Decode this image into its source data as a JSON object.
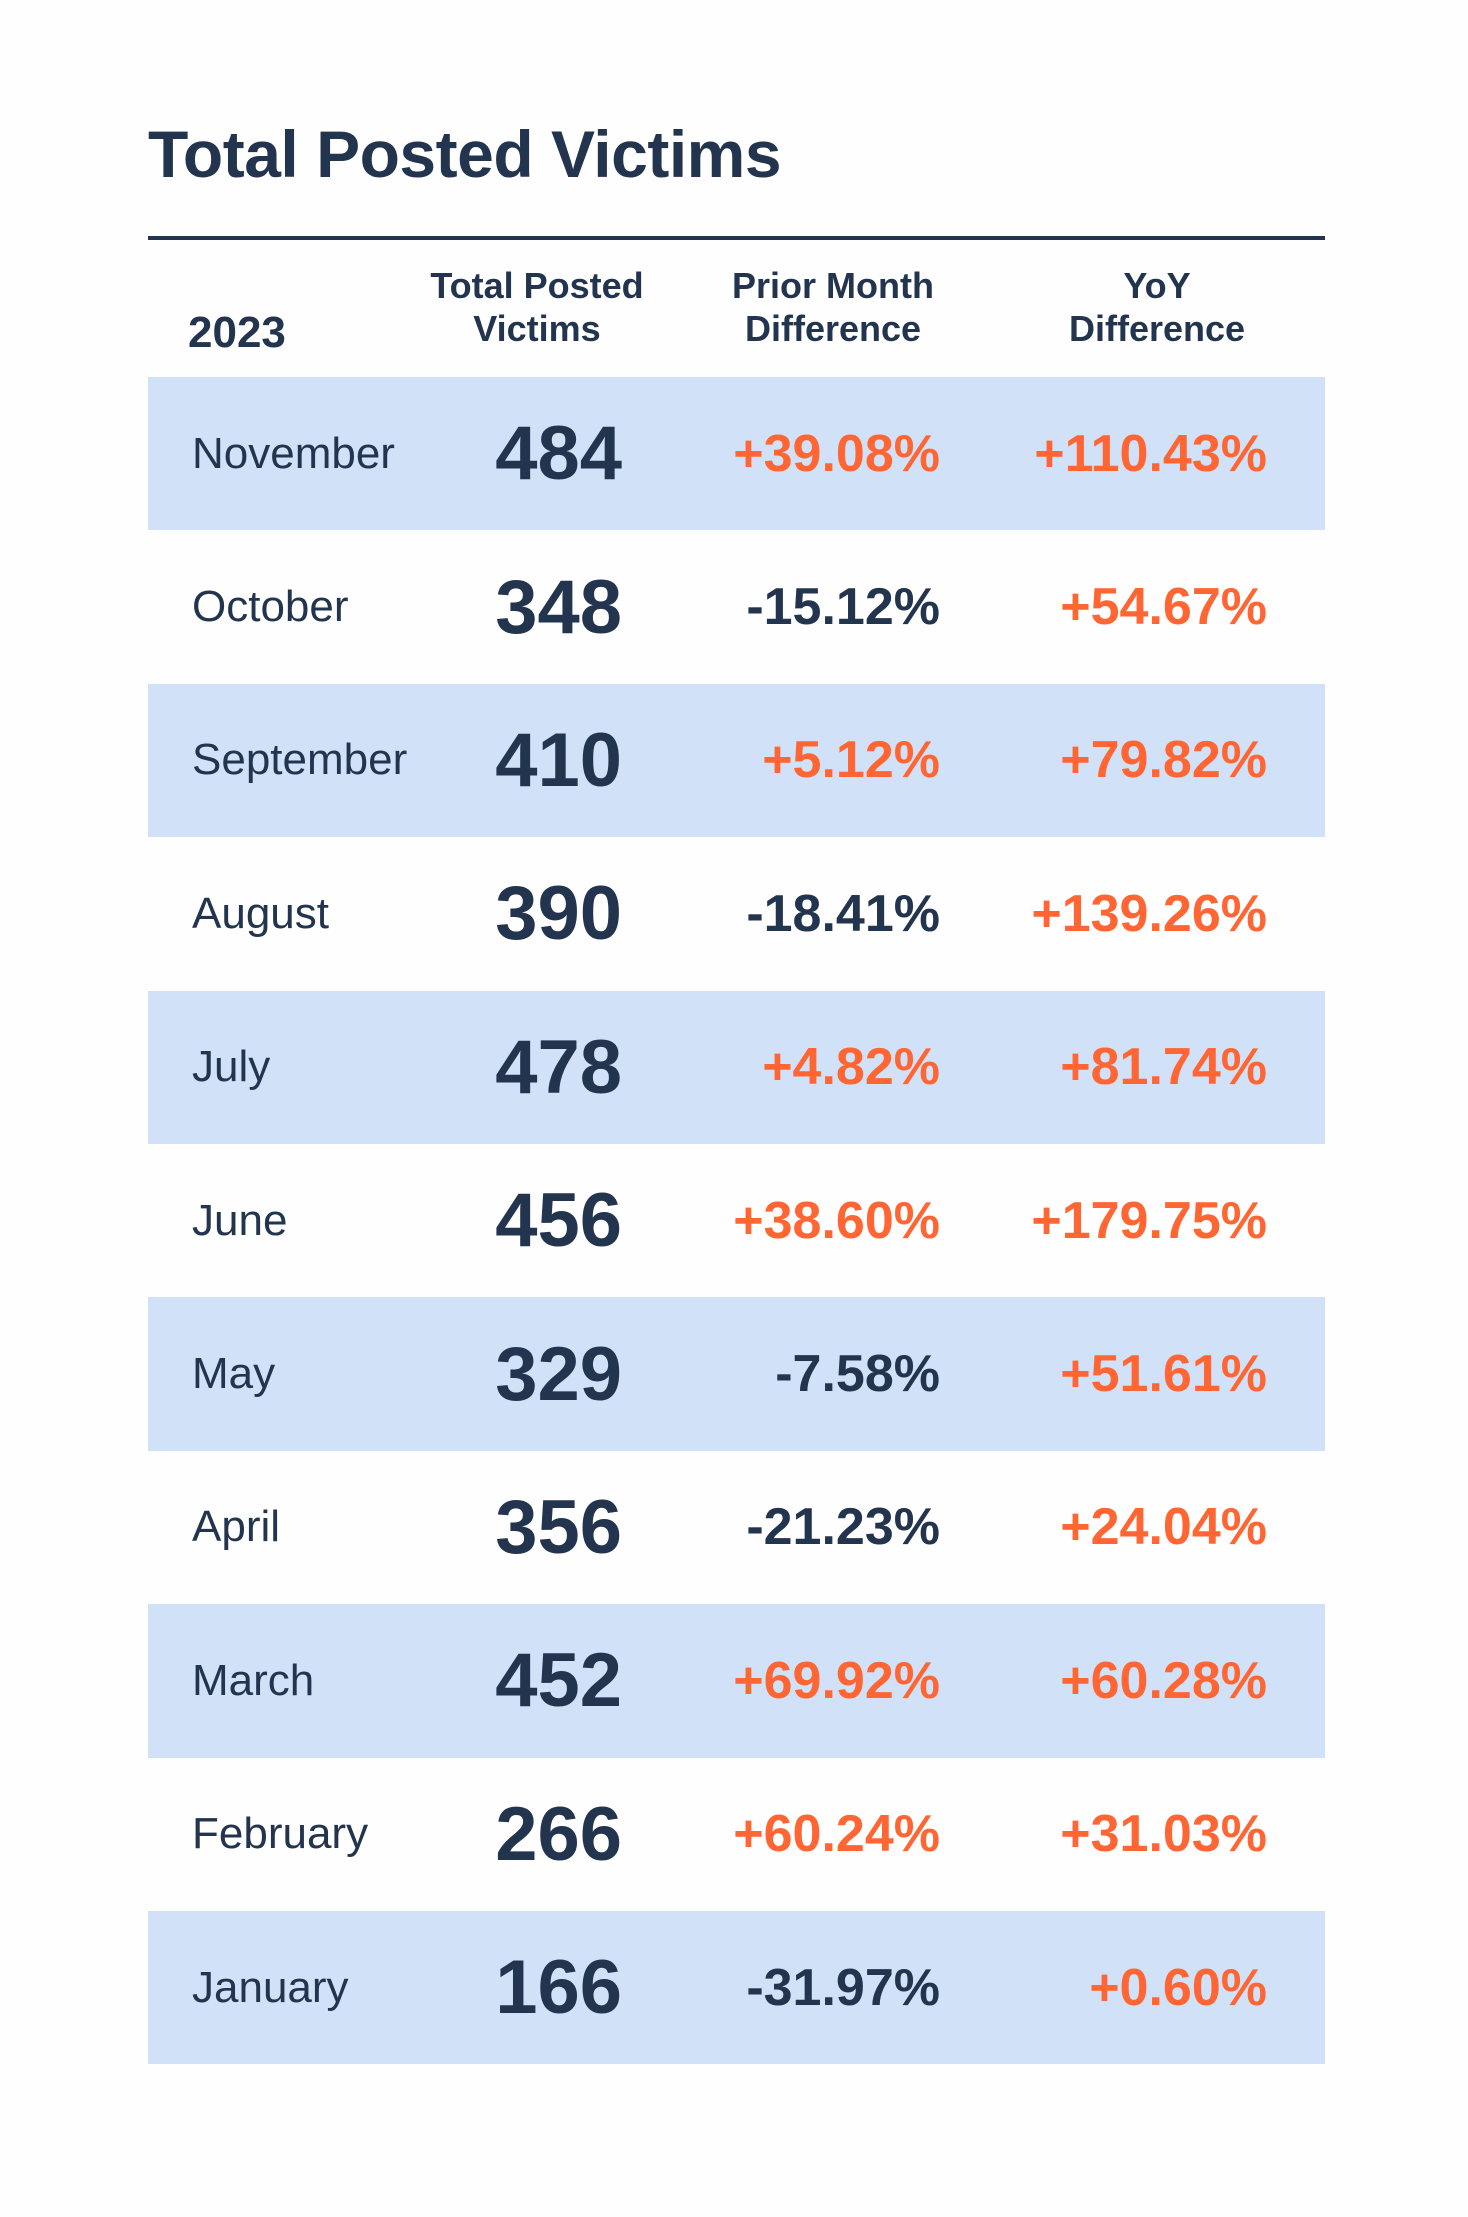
{
  "title": "Total Posted Victims",
  "header": {
    "year": "2023",
    "columns": [
      {
        "line1": "Total Posted",
        "line2": "Victims"
      },
      {
        "line1": "Prior Month",
        "line2": "Difference"
      },
      {
        "line1": "YoY",
        "line2": "Difference"
      }
    ]
  },
  "colors": {
    "text": "#23344E",
    "positive": "#FF6633",
    "negative": "#23344E",
    "band": "#D1E1F8",
    "background": "#FEFEFE"
  },
  "rows": [
    {
      "month": "November",
      "total": "484",
      "prior": "+39.08%",
      "prior_sign": "pos",
      "yoy": "+110.43%",
      "yoy_sign": "pos"
    },
    {
      "month": "October",
      "total": "348",
      "prior": "-15.12%",
      "prior_sign": "neg",
      "yoy": "+54.67%",
      "yoy_sign": "pos"
    },
    {
      "month": "September",
      "total": "410",
      "prior": "+5.12%",
      "prior_sign": "pos",
      "yoy": "+79.82%",
      "yoy_sign": "pos"
    },
    {
      "month": "August",
      "total": "390",
      "prior": "-18.41%",
      "prior_sign": "neg",
      "yoy": "+139.26%",
      "yoy_sign": "pos"
    },
    {
      "month": "July",
      "total": "478",
      "prior": "+4.82%",
      "prior_sign": "pos",
      "yoy": "+81.74%",
      "yoy_sign": "pos"
    },
    {
      "month": "June",
      "total": "456",
      "prior": "+38.60%",
      "prior_sign": "pos",
      "yoy": "+179.75%",
      "yoy_sign": "pos"
    },
    {
      "month": "May",
      "total": "329",
      "prior": "-7.58%",
      "prior_sign": "neg",
      "yoy": "+51.61%",
      "yoy_sign": "pos"
    },
    {
      "month": "April",
      "total": "356",
      "prior": "-21.23%",
      "prior_sign": "neg",
      "yoy": "+24.04%",
      "yoy_sign": "pos"
    },
    {
      "month": "March",
      "total": "452",
      "prior": "+69.92%",
      "prior_sign": "pos",
      "yoy": "+60.28%",
      "yoy_sign": "pos"
    },
    {
      "month": "February",
      "total": "266",
      "prior": "+60.24%",
      "prior_sign": "pos",
      "yoy": "+31.03%",
      "yoy_sign": "pos"
    },
    {
      "month": "January",
      "total": "166",
      "prior": "-31.97%",
      "prior_sign": "neg",
      "yoy": "+0.60%",
      "yoy_sign": "pos"
    }
  ],
  "chart_data": {
    "type": "table",
    "title": "Total Posted Victims",
    "year": "2023",
    "columns": [
      "2023",
      "Total Posted Victims",
      "Prior Month Difference",
      "YoY Difference"
    ],
    "categories": [
      "November",
      "October",
      "September",
      "August",
      "July",
      "June",
      "May",
      "April",
      "March",
      "February",
      "January"
    ],
    "series": [
      {
        "name": "Total Posted Victims",
        "values": [
          484,
          348,
          410,
          390,
          478,
          456,
          329,
          356,
          452,
          266,
          166
        ]
      },
      {
        "name": "Prior Month Difference (%)",
        "values": [
          39.08,
          -15.12,
          5.12,
          -18.41,
          4.82,
          38.6,
          -7.58,
          -21.23,
          69.92,
          60.24,
          -31.97
        ]
      },
      {
        "name": "YoY Difference (%)",
        "values": [
          110.43,
          54.67,
          79.82,
          139.26,
          81.74,
          179.75,
          51.61,
          24.04,
          60.28,
          31.03,
          0.6
        ]
      }
    ],
    "layout": {
      "grid": false,
      "row_banding": "alternating",
      "positive_color": "#FF6633",
      "negative_color": "#23344E"
    }
  }
}
